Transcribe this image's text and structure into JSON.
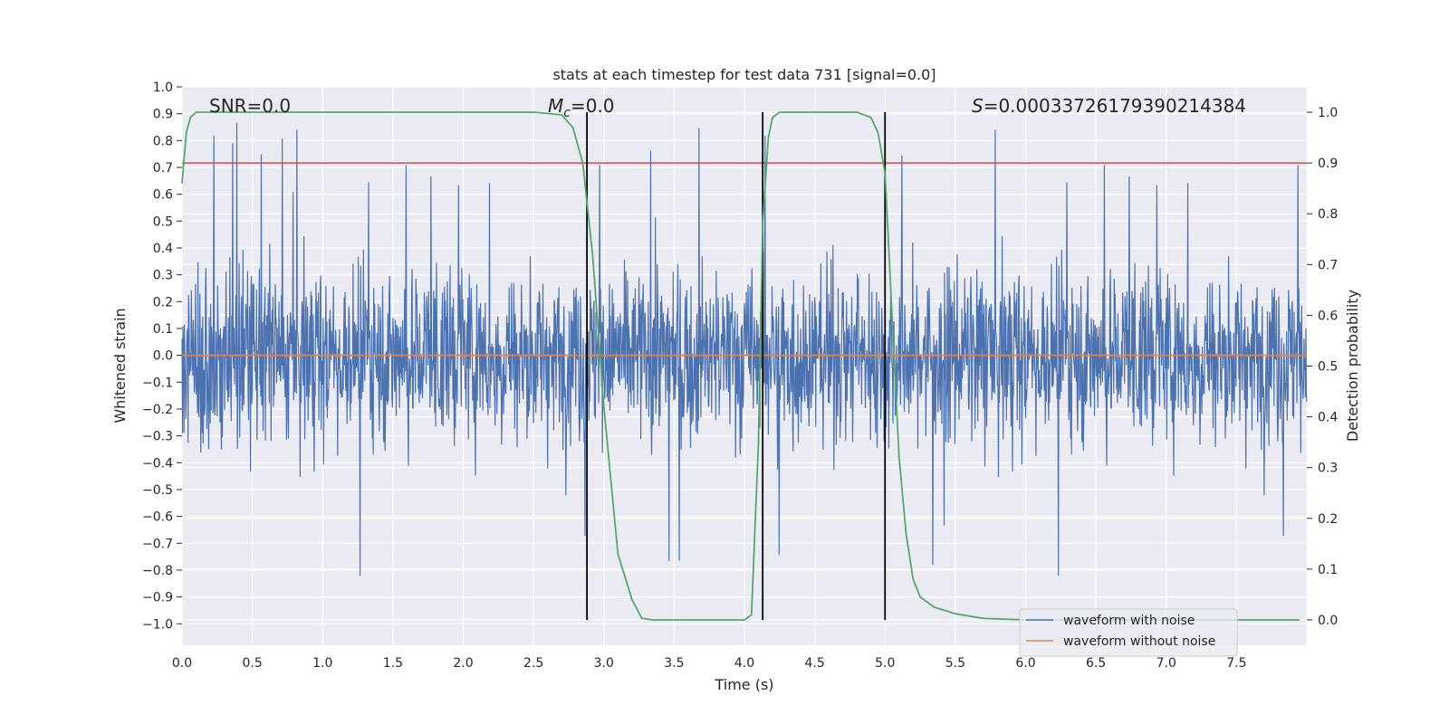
{
  "chart_data": {
    "type": "line",
    "title": "stats at each timestep for test data 731 [signal=0.0]",
    "xlabel": "Time (s)",
    "ylabel": "Whitened strain",
    "y2label": "Detection probability",
    "xlim": [
      0.0,
      8.0
    ],
    "ylim": [
      -1.08,
      1.0
    ],
    "y2lim": [
      -0.05,
      1.05
    ],
    "x_ticks": [
      "0.0",
      "0.5",
      "1.0",
      "1.5",
      "2.0",
      "2.5",
      "3.0",
      "3.5",
      "4.0",
      "4.5",
      "5.0",
      "5.5",
      "6.0",
      "6.5",
      "7.0",
      "7.5"
    ],
    "y_ticks": [
      "1.0",
      "0.9",
      "0.8",
      "0.7",
      "0.6",
      "0.5",
      "0.4",
      "0.3",
      "0.2",
      "0.1",
      "0.0",
      "−0.1",
      "−0.2",
      "−0.3",
      "−0.4",
      "−0.5",
      "−0.6",
      "−0.7",
      "−0.8",
      "−0.9",
      "−1.0"
    ],
    "y2_ticks": [
      "1.0",
      "0.9",
      "0.8",
      "0.7",
      "0.6",
      "0.5",
      "0.4",
      "0.3",
      "0.2",
      "0.1",
      "0.0"
    ],
    "grid": true,
    "legend_position": "bottom-right",
    "annotations": {
      "snr": "SNR=0.0",
      "mc_symbol": "M",
      "mc_subscript": "c",
      "mc_value": "=0.0",
      "s_symbol": "S",
      "s_value": "=0.00033726179390214384"
    },
    "series": [
      {
        "name": "waveform with noise",
        "color": "#4c72b0",
        "description_of_values": "dense noise spanning roughly -0.9 to 0.87 across the full time range",
        "envelope_abs_typical": 0.55,
        "peak_max": 0.87,
        "peak_min": -0.9
      },
      {
        "name": "waveform without noise",
        "color": "#dd8452",
        "x": [
          0.0,
          8.0
        ],
        "y": [
          0.0,
          0.0
        ]
      },
      {
        "color": "#55a868",
        "axis": "right",
        "x": [
          0.0,
          0.03,
          0.06,
          0.1,
          0.2,
          0.5,
          1.0,
          1.5,
          2.0,
          2.5,
          2.7,
          2.78,
          2.85,
          2.92,
          3.0,
          3.1,
          3.2,
          3.27,
          3.35,
          3.5,
          4.0,
          4.05,
          4.1,
          4.13,
          4.17,
          4.2,
          4.25,
          4.3,
          4.5,
          4.8,
          4.9,
          4.95,
          5.0,
          5.05,
          5.1,
          5.15,
          5.2,
          5.25,
          5.35,
          5.5,
          5.7,
          6.0,
          6.5,
          7.0,
          7.5,
          7.95
        ],
        "y": [
          0.86,
          0.96,
          0.99,
          1.0,
          1.0,
          1.0,
          1.0,
          1.0,
          1.0,
          1.0,
          0.995,
          0.97,
          0.9,
          0.72,
          0.42,
          0.13,
          0.04,
          0.003,
          0.0,
          0.0,
          0.0,
          0.01,
          0.35,
          0.78,
          0.95,
          0.99,
          1.0,
          1.0,
          1.0,
          1.0,
          0.99,
          0.96,
          0.88,
          0.6,
          0.32,
          0.17,
          0.08,
          0.045,
          0.025,
          0.012,
          0.003,
          0.0,
          0.0,
          0.0,
          0.0,
          0.0
        ]
      }
    ],
    "threshold_line": {
      "color": "#c44e52",
      "y2": 0.9
    },
    "vertical_lines": {
      "color": "#000000",
      "x": [
        2.88,
        4.13,
        5.0
      ]
    }
  }
}
